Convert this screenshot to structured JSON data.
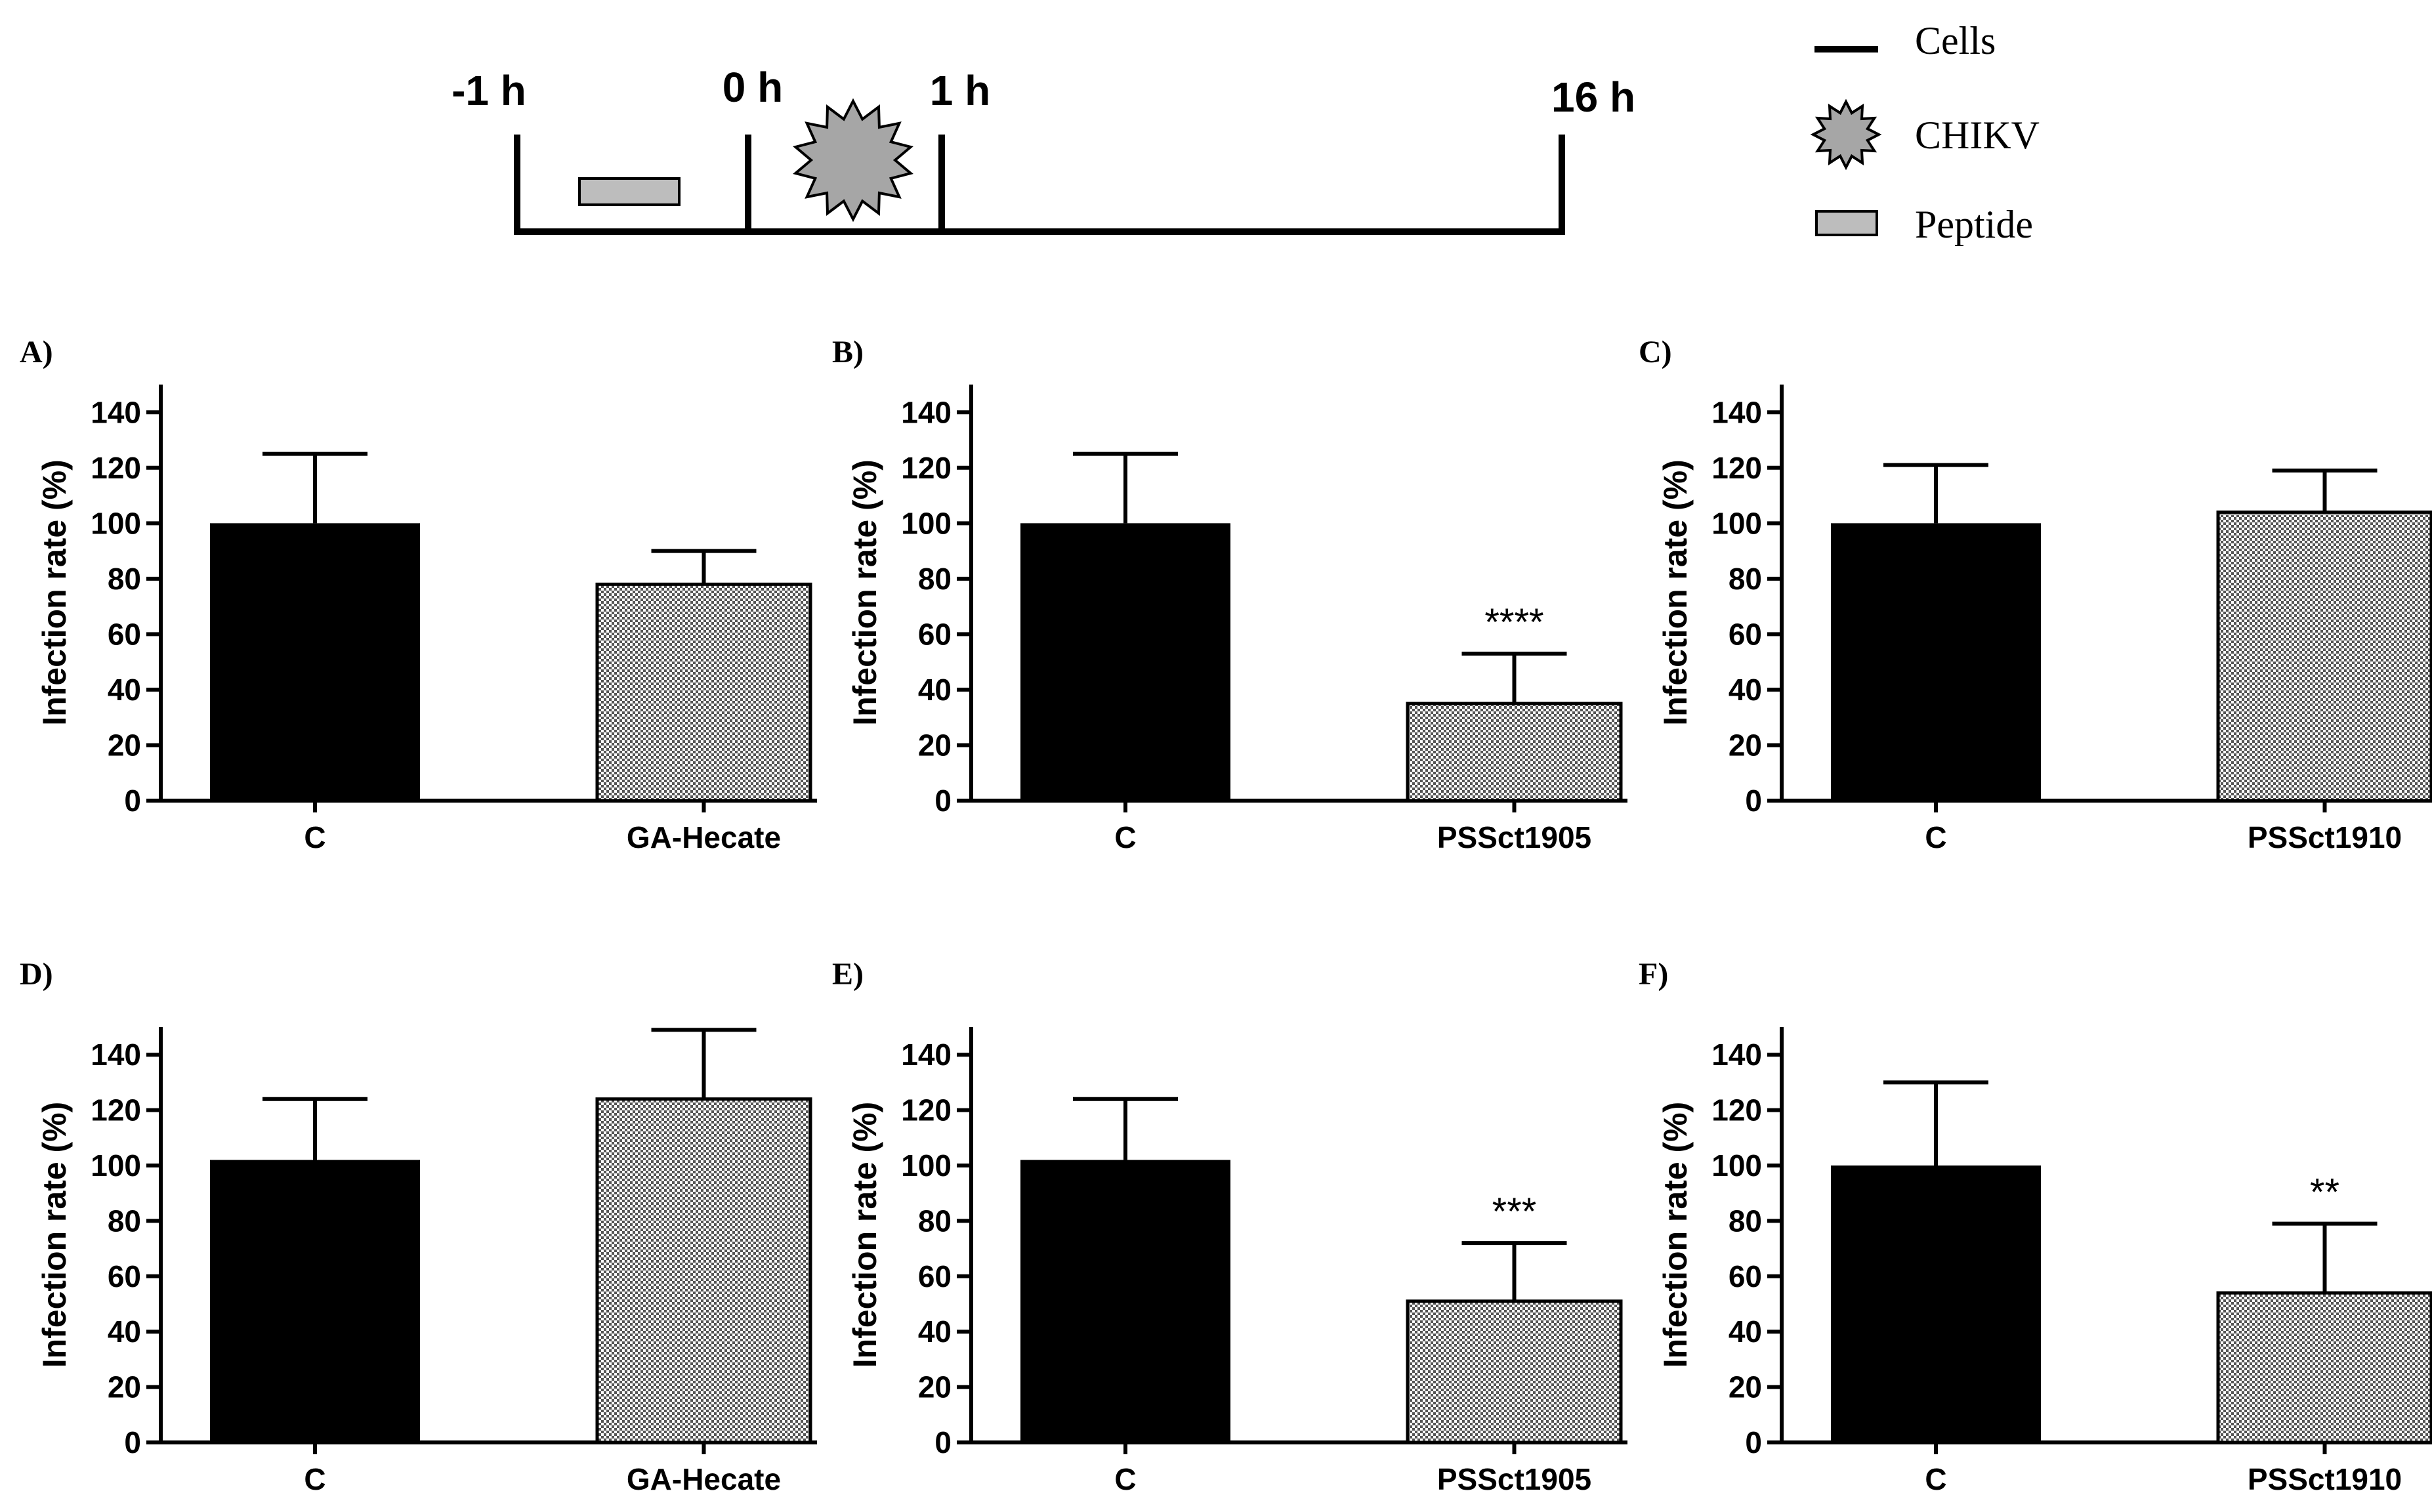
{
  "colors": {
    "control_bar": "#000000",
    "peptide_fill": "#bdbdbd",
    "virus_fill": "#a6a6a6",
    "axis": "#000000",
    "background": "#ffffff"
  },
  "timeline": {
    "time_labels": [
      "-1 h",
      "0 h",
      "1 h",
      "16 h"
    ],
    "legend": [
      {
        "key": "cells",
        "label": "Cells",
        "icon": "line-icon"
      },
      {
        "key": "chikv",
        "label": "CHIKV",
        "icon": "virus-star-icon"
      },
      {
        "key": "peptide",
        "label": "Peptide",
        "icon": "peptide-box-icon"
      }
    ]
  },
  "chart_data": [
    {
      "panel": "A)",
      "type": "bar",
      "title": "A)",
      "ylabel": "Infection rate (%)",
      "xlabel": "",
      "ylim": [
        0,
        150
      ],
      "yticks": [
        0,
        20,
        40,
        60,
        80,
        100,
        120,
        140
      ],
      "categories": [
        "C",
        "GA-Hecate"
      ],
      "values": [
        100,
        78
      ],
      "errors": [
        25,
        12
      ],
      "significance": [
        "",
        ""
      ]
    },
    {
      "panel": "B)",
      "type": "bar",
      "title": "B)",
      "ylabel": "Infection rate (%)",
      "xlabel": "",
      "ylim": [
        0,
        150
      ],
      "yticks": [
        0,
        20,
        40,
        60,
        80,
        100,
        120,
        140
      ],
      "categories": [
        "C",
        "PSSct1905"
      ],
      "values": [
        100,
        35
      ],
      "errors": [
        25,
        18
      ],
      "significance": [
        "",
        "****"
      ]
    },
    {
      "panel": "C)",
      "type": "bar",
      "title": "C)",
      "ylabel": "Infection rate (%)",
      "xlabel": "",
      "ylim": [
        0,
        150
      ],
      "yticks": [
        0,
        20,
        40,
        60,
        80,
        100,
        120,
        140
      ],
      "categories": [
        "C",
        "PSSct1910"
      ],
      "values": [
        100,
        104
      ],
      "errors": [
        21,
        15
      ],
      "significance": [
        "",
        ""
      ]
    },
    {
      "panel": "D)",
      "type": "bar",
      "title": "D)",
      "ylabel": "Infection rate (%)",
      "xlabel": "",
      "ylim": [
        0,
        150
      ],
      "yticks": [
        0,
        20,
        40,
        60,
        80,
        100,
        120,
        140
      ],
      "categories": [
        "C",
        "GA-Hecate"
      ],
      "values": [
        102,
        124
      ],
      "errors": [
        22,
        25
      ],
      "significance": [
        "",
        ""
      ]
    },
    {
      "panel": "E)",
      "type": "bar",
      "title": "E)",
      "ylabel": "Infection rate (%)",
      "xlabel": "",
      "ylim": [
        0,
        150
      ],
      "yticks": [
        0,
        20,
        40,
        60,
        80,
        100,
        120,
        140
      ],
      "categories": [
        "C",
        "PSSct1905"
      ],
      "values": [
        102,
        51
      ],
      "errors": [
        22,
        21
      ],
      "significance": [
        "",
        "***"
      ]
    },
    {
      "panel": "F)",
      "type": "bar",
      "title": "F)",
      "ylabel": "Infection rate (%)",
      "xlabel": "",
      "ylim": [
        0,
        150
      ],
      "yticks": [
        0,
        20,
        40,
        60,
        80,
        100,
        120,
        140
      ],
      "categories": [
        "C",
        "PSSct1910"
      ],
      "values": [
        100,
        54
      ],
      "errors": [
        30,
        25
      ],
      "significance": [
        "",
        "**"
      ]
    }
  ]
}
